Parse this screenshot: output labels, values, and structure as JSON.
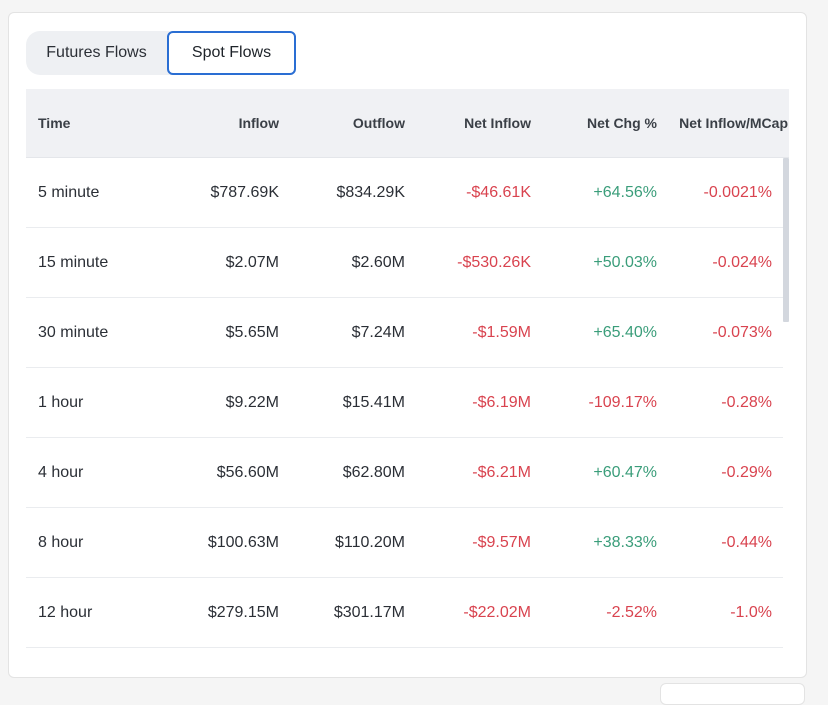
{
  "tabs": [
    {
      "label": "Futures Flows",
      "active": false
    },
    {
      "label": "Spot Flows",
      "active": true
    }
  ],
  "colors": {
    "negative": "#d9434f",
    "positive": "#3a9d7a",
    "active_tab_border": "#2a6ed3"
  },
  "table": {
    "headers": [
      "Time",
      "Inflow",
      "Outflow",
      "Net Inflow",
      "Net Chg %",
      "Net Inflow/MCap"
    ],
    "rows": [
      {
        "time": "5 minute",
        "inflow": "$787.69K",
        "outflow": "$834.29K",
        "net_inflow": "-$46.61K",
        "net_chg": "+64.56%",
        "net_mcap": "-0.0021%"
      },
      {
        "time": "15 minute",
        "inflow": "$2.07M",
        "outflow": "$2.60M",
        "net_inflow": "-$530.26K",
        "net_chg": "+50.03%",
        "net_mcap": "-0.024%"
      },
      {
        "time": "30 minute",
        "inflow": "$5.65M",
        "outflow": "$7.24M",
        "net_inflow": "-$1.59M",
        "net_chg": "+65.40%",
        "net_mcap": "-0.073%"
      },
      {
        "time": "1 hour",
        "inflow": "$9.22M",
        "outflow": "$15.41M",
        "net_inflow": "-$6.19M",
        "net_chg": "-109.17%",
        "net_mcap": "-0.28%"
      },
      {
        "time": "4 hour",
        "inflow": "$56.60M",
        "outflow": "$62.80M",
        "net_inflow": "-$6.21M",
        "net_chg": "+60.47%",
        "net_mcap": "-0.29%"
      },
      {
        "time": "8 hour",
        "inflow": "$100.63M",
        "outflow": "$110.20M",
        "net_inflow": "-$9.57M",
        "net_chg": "+38.33%",
        "net_mcap": "-0.44%"
      },
      {
        "time": "12 hour",
        "inflow": "$279.15M",
        "outflow": "$301.17M",
        "net_inflow": "-$22.02M",
        "net_chg": "-2.52%",
        "net_mcap": "-1.0%"
      }
    ]
  }
}
